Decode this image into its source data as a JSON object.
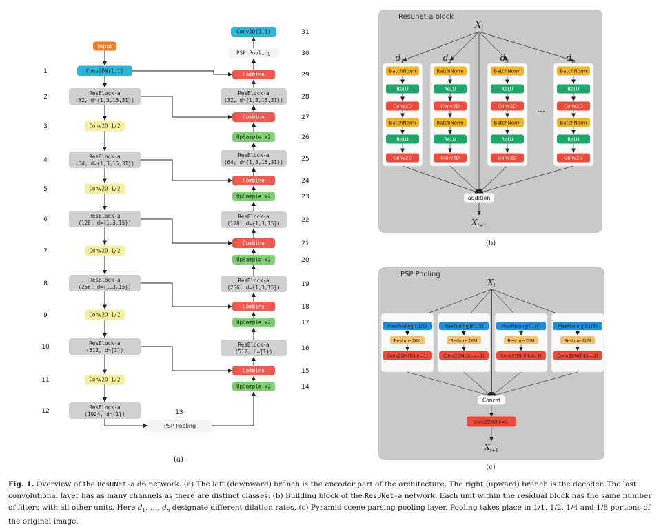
{
  "panel_a": {
    "label": "(a)",
    "input": "Input",
    "left": [
      {
        "num": "1",
        "text": [
          "Conv2DN(1,1)"
        ],
        "kind": "cyan"
      },
      {
        "num": "2",
        "text": [
          "ResBlock-a",
          "(32, d={1,3,15,31})"
        ],
        "kind": "gray"
      },
      {
        "num": "3",
        "text": [
          "Conv2D 1/2"
        ],
        "kind": "yellow"
      },
      {
        "num": "4",
        "text": [
          "ResBlock-a",
          "(64, d={1,3,15,31})"
        ],
        "kind": "gray"
      },
      {
        "num": "5",
        "text": [
          "Conv2D 1/2"
        ],
        "kind": "yellow"
      },
      {
        "num": "6",
        "text": [
          "ResBlock-a",
          "(128, d={1,3,15})"
        ],
        "kind": "gray"
      },
      {
        "num": "7",
        "text": [
          "Conv2D 1/2"
        ],
        "kind": "yellow"
      },
      {
        "num": "8",
        "text": [
          "ResBlock-a",
          "(256, d={1,3,15})"
        ],
        "kind": "gray"
      },
      {
        "num": "9",
        "text": [
          "Conv2D 1/2"
        ],
        "kind": "yellow"
      },
      {
        "num": "10",
        "text": [
          "ResBlock-a",
          "(512, d={1})"
        ],
        "kind": "gray"
      },
      {
        "num": "11",
        "text": [
          "Conv2D 1/2"
        ],
        "kind": "yellow"
      },
      {
        "num": "12",
        "text": [
          "ResBlock-a",
          "(1024, d={1})"
        ],
        "kind": "gray"
      }
    ],
    "bottom": {
      "num": "13",
      "text": "PSP Pooling"
    },
    "right": [
      {
        "num": "31",
        "text": [
          "Conv2D(1,1)"
        ],
        "kind": "cyan"
      },
      {
        "num": "30",
        "text": [
          "PSP Pooling"
        ],
        "kind": "white"
      },
      {
        "num": "29",
        "text": [
          "Combine"
        ],
        "kind": "red"
      },
      {
        "num": "28",
        "text": [
          "ResBlock-a",
          "(32, d={1,3,15,31})"
        ],
        "kind": "gray"
      },
      {
        "num": "27",
        "text": [
          "Combine"
        ],
        "kind": "red"
      },
      {
        "num": "26",
        "text": [
          "UpSample x2"
        ],
        "kind": "green"
      },
      {
        "num": "25",
        "text": [
          "ResBlock-a",
          "(64, d={1,3,15,31})"
        ],
        "kind": "gray"
      },
      {
        "num": "24",
        "text": [
          "Combine"
        ],
        "kind": "red"
      },
      {
        "num": "23",
        "text": [
          "UpSample x2"
        ],
        "kind": "green"
      },
      {
        "num": "22",
        "text": [
          "ResBlock-a",
          "(128, d={1,3,15})"
        ],
        "kind": "gray"
      },
      {
        "num": "21",
        "text": [
          "Combine"
        ],
        "kind": "red"
      },
      {
        "num": "20",
        "text": [
          "UpSample x2"
        ],
        "kind": "green"
      },
      {
        "num": "19",
        "text": [
          "ResBlock-a",
          "(256, d={1,3,15})"
        ],
        "kind": "gray"
      },
      {
        "num": "18",
        "text": [
          "Combine"
        ],
        "kind": "red"
      },
      {
        "num": "17",
        "text": [
          "UpSample x2"
        ],
        "kind": "green"
      },
      {
        "num": "16",
        "text": [
          "ResBlock-a",
          "(512, d={1})"
        ],
        "kind": "gray"
      },
      {
        "num": "15",
        "text": [
          "Combine"
        ],
        "kind": "red"
      },
      {
        "num": "14",
        "text": [
          "UpSample x2"
        ],
        "kind": "green"
      }
    ]
  },
  "panel_b": {
    "label": "(b)",
    "title": "Resunet-a block",
    "input": "X",
    "input_sub": "l",
    "output": "X",
    "output_sub": "l+1",
    "branches": [
      "d1",
      "d2",
      "d3",
      "dn"
    ],
    "branch_base": "d",
    "branch_subs": [
      "1",
      "2",
      "3",
      "n"
    ],
    "units": [
      "BatchNorm",
      "ReLU",
      "Conv2D",
      "BatchNorm",
      "ReLU",
      "Conv2D"
    ],
    "ellipsis": "···",
    "addition": "addition"
  },
  "panel_c": {
    "label": "(c)",
    "title": "PSP Pooling",
    "input": "X",
    "input_sub": "l",
    "output": "X",
    "output_sub": "l+1",
    "pools": [
      "MaxPooling(f,1/1)",
      "MaxPooling(f,1/2)",
      "MaxPooling(f,1/4)",
      "MaxPooling(f,1/8)"
    ],
    "restore": "Restore DIM",
    "conv": "Conv2DN(f/4,k=1)",
    "concat": "Concat",
    "final": "Conv2DN(f,k=1)"
  },
  "caption": {
    "fig": "Fig. 1.",
    "s1": " Overview of the ",
    "m1": "ResUNet-a",
    "s2": " d6 network. (a) The left (downward) branch is the encoder part of the architecture. The right (upward) branch is the decoder. The last convolutional layer has as many channels as there are distinct classes. (b) Building block of the ",
    "m2": "ResUNet-a",
    "s3": " network. Each unit within the residual block has the same number of filters with all other units. Here ",
    "s4": ", …, ",
    "s5": " designate different dilation rates, (c) Pyramid scene parsing pooling layer. Pooling takes place in 1/1, 1/2, 1/4 and 1/8 portions of the original image."
  },
  "colors": {
    "cyan": "#29b6d8",
    "gray": "#cfcfcf",
    "yellow": "#f5f0a0",
    "red": "#f0594d",
    "green": "#7fd173",
    "orange": "#f07e24",
    "white": "#f4f4f4",
    "bn": "#f5b51c",
    "relu": "#1fa76a",
    "conv": "#ee4b3c",
    "pool": "#1f8fd9",
    "restore": "#f7c36a"
  }
}
